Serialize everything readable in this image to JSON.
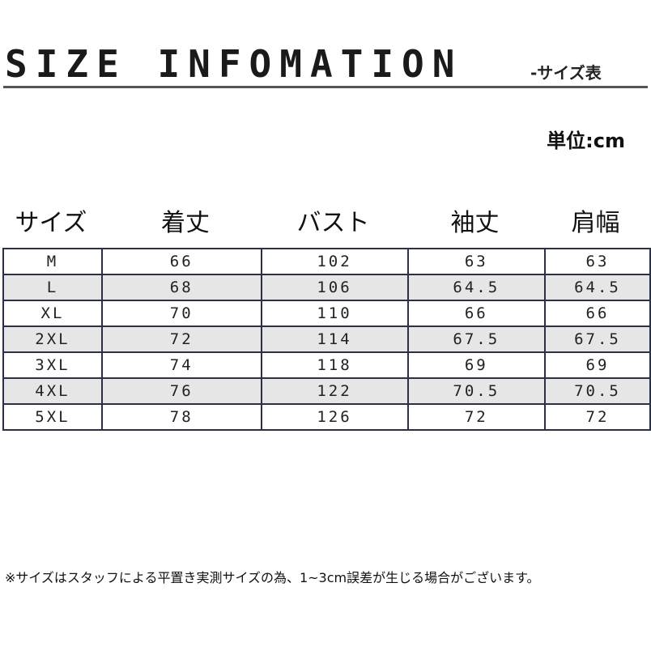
{
  "header": {
    "title": "SIZE INFOMATION",
    "subtitle": "-サイズ表",
    "unit": "単位:cm"
  },
  "table": {
    "columns": [
      "サイズ",
      "着丈",
      "バスト",
      "袖丈",
      "肩幅"
    ],
    "rows": [
      [
        "M",
        "66",
        "102",
        "63",
        "63"
      ],
      [
        "L",
        "68",
        "106",
        "64.5",
        "64.5"
      ],
      [
        "XL",
        "70",
        "110",
        "66",
        "66"
      ],
      [
        "2XL",
        "72",
        "114",
        "67.5",
        "67.5"
      ],
      [
        "3XL",
        "74",
        "118",
        "69",
        "69"
      ],
      [
        "4XL",
        "76",
        "122",
        "70.5",
        "70.5"
      ],
      [
        "5XL",
        "78",
        "126",
        "72",
        "72"
      ]
    ]
  },
  "note": "※サイズはスタッフによる平置き実測サイズの為、1~3cm誤差が生じる場合がございます。",
  "colors": {
    "border": "#2b3047",
    "alt_row": "#e6e6e6"
  }
}
